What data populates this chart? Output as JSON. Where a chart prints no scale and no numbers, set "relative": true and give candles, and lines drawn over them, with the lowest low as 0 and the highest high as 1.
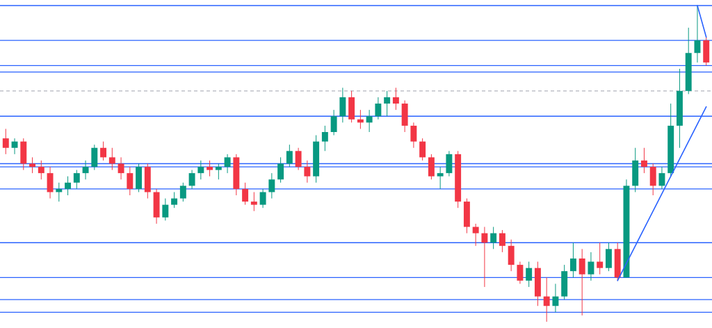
{
  "chart_data": {
    "type": "candlestick",
    "relative": true,
    "categories": [
      null,
      null,
      null,
      null,
      null,
      null,
      null,
      null,
      null,
      null,
      null,
      null,
      null,
      null,
      null,
      null,
      null,
      null,
      null,
      null,
      null,
      null,
      null,
      null,
      null,
      null,
      null,
      null,
      null,
      null,
      null,
      null,
      null,
      null,
      null,
      null,
      null,
      null,
      null,
      null,
      null,
      null,
      null,
      null,
      null,
      null,
      null,
      null,
      null,
      null,
      null,
      null,
      null,
      null,
      null,
      null,
      null,
      null,
      null,
      null,
      null,
      null,
      null,
      null,
      null,
      null,
      null,
      null,
      null,
      null,
      null,
      null,
      null,
      null,
      null,
      null,
      null,
      null,
      null,
      null
    ],
    "ohlc": [
      [
        0.58,
        0.61,
        0.53,
        0.55
      ],
      [
        0.55,
        0.58,
        0.53,
        0.57
      ],
      [
        0.57,
        0.58,
        0.48,
        0.5
      ],
      [
        0.5,
        0.52,
        0.47,
        0.49
      ],
      [
        0.49,
        0.51,
        0.45,
        0.47
      ],
      [
        0.47,
        0.49,
        0.39,
        0.41
      ],
      [
        0.41,
        0.44,
        0.38,
        0.42
      ],
      [
        0.42,
        0.46,
        0.4,
        0.44
      ],
      [
        0.44,
        0.48,
        0.42,
        0.47
      ],
      [
        0.47,
        0.51,
        0.45,
        0.49
      ],
      [
        0.49,
        0.56,
        0.48,
        0.55
      ],
      [
        0.55,
        0.57,
        0.51,
        0.52
      ],
      [
        0.52,
        0.55,
        0.48,
        0.5
      ],
      [
        0.5,
        0.52,
        0.45,
        0.47
      ],
      [
        0.47,
        0.49,
        0.4,
        0.42
      ],
      [
        0.42,
        0.5,
        0.41,
        0.49
      ],
      [
        0.49,
        0.5,
        0.39,
        0.41
      ],
      [
        0.41,
        0.42,
        0.31,
        0.33
      ],
      [
        0.33,
        0.39,
        0.32,
        0.37
      ],
      [
        0.37,
        0.41,
        0.36,
        0.39
      ],
      [
        0.39,
        0.44,
        0.38,
        0.43
      ],
      [
        0.43,
        0.48,
        0.42,
        0.47
      ],
      [
        0.47,
        0.51,
        0.45,
        0.49
      ],
      [
        0.49,
        0.51,
        0.46,
        0.48
      ],
      [
        0.48,
        0.5,
        0.45,
        0.49
      ],
      [
        0.49,
        0.53,
        0.47,
        0.52
      ],
      [
        0.52,
        0.53,
        0.4,
        0.42
      ],
      [
        0.42,
        0.44,
        0.37,
        0.38
      ],
      [
        0.38,
        0.41,
        0.35,
        0.37
      ],
      [
        0.37,
        0.42,
        0.36,
        0.41
      ],
      [
        0.41,
        0.47,
        0.39,
        0.45
      ],
      [
        0.45,
        0.52,
        0.44,
        0.5
      ],
      [
        0.5,
        0.56,
        0.49,
        0.54
      ],
      [
        0.54,
        0.55,
        0.48,
        0.49
      ],
      [
        0.49,
        0.51,
        0.44,
        0.46
      ],
      [
        0.46,
        0.59,
        0.44,
        0.57
      ],
      [
        0.57,
        0.62,
        0.54,
        0.6
      ],
      [
        0.6,
        0.67,
        0.59,
        0.65
      ],
      [
        0.65,
        0.74,
        0.63,
        0.71
      ],
      [
        0.71,
        0.73,
        0.63,
        0.64
      ],
      [
        0.64,
        0.67,
        0.61,
        0.63
      ],
      [
        0.63,
        0.67,
        0.6,
        0.65
      ],
      [
        0.65,
        0.71,
        0.64,
        0.69
      ],
      [
        0.69,
        0.73,
        0.65,
        0.71
      ],
      [
        0.71,
        0.74,
        0.67,
        0.69
      ],
      [
        0.69,
        0.7,
        0.6,
        0.62
      ],
      [
        0.62,
        0.63,
        0.55,
        0.57
      ],
      [
        0.57,
        0.58,
        0.51,
        0.52
      ],
      [
        0.52,
        0.53,
        0.45,
        0.46
      ],
      [
        0.46,
        0.49,
        0.42,
        0.47
      ],
      [
        0.47,
        0.54,
        0.46,
        0.53
      ],
      [
        0.53,
        0.54,
        0.36,
        0.38
      ],
      [
        0.38,
        0.39,
        0.28,
        0.3
      ],
      [
        0.3,
        0.31,
        0.24,
        0.28
      ],
      [
        0.28,
        0.3,
        0.11,
        0.25
      ],
      [
        0.25,
        0.3,
        0.23,
        0.28
      ],
      [
        0.28,
        0.29,
        0.22,
        0.24
      ],
      [
        0.24,
        0.26,
        0.16,
        0.18
      ],
      [
        0.18,
        0.19,
        0.12,
        0.13
      ],
      [
        0.13,
        0.19,
        0.11,
        0.17
      ],
      [
        0.17,
        0.19,
        0.05,
        0.08
      ],
      [
        0.08,
        0.14,
        0,
        0.05
      ],
      [
        0.05,
        0.12,
        0.03,
        0.08
      ],
      [
        0.08,
        0.18,
        0.07,
        0.16
      ],
      [
        0.16,
        0.25,
        0.14,
        0.2
      ],
      [
        0.2,
        0.23,
        0.02,
        0.15
      ],
      [
        0.15,
        0.22,
        0.13,
        0.19
      ],
      [
        0.19,
        0.25,
        0.15,
        0.17
      ],
      [
        0.17,
        0.25,
        0.16,
        0.23
      ],
      [
        0.23,
        0.25,
        0.13,
        0.14
      ],
      [
        0.14,
        0.45,
        0.14,
        0.43
      ],
      [
        0.43,
        0.55,
        0.41,
        0.51
      ],
      [
        0.51,
        0.55,
        0.47,
        0.49
      ],
      [
        0.49,
        0.5,
        0.4,
        0.43
      ],
      [
        0.43,
        0.49,
        0.42,
        0.47
      ],
      [
        0.47,
        0.69,
        0.46,
        0.62
      ],
      [
        0.62,
        0.8,
        0.55,
        0.73
      ],
      [
        0.73,
        0.93,
        0.72,
        0.85
      ],
      [
        0.85,
        1,
        0.82,
        0.89
      ],
      [
        0.89,
        0.9,
        0.81,
        0.82
      ]
    ],
    "series": [
      {
        "type": "line",
        "color": "#2962ff",
        "values": [
          null,
          null,
          null,
          null,
          null,
          null,
          null,
          null,
          null,
          null,
          null,
          null,
          null,
          null,
          null,
          null,
          null,
          null,
          null,
          null,
          null,
          null,
          null,
          null,
          null,
          null,
          null,
          null,
          null,
          null,
          null,
          null,
          null,
          null,
          null,
          null,
          null,
          null,
          null,
          null,
          null,
          null,
          null,
          null,
          null,
          null,
          null,
          null,
          null,
          null,
          null,
          null,
          null,
          null,
          null,
          null,
          null,
          null,
          null,
          null,
          null,
          null,
          null,
          null,
          null,
          null,
          null,
          null,
          null,
          0.13,
          null,
          null,
          null,
          null,
          null,
          null,
          null,
          null,
          null,
          0.68
        ]
      },
      {
        "type": "line",
        "color": "#2962ff",
        "values": [
          null,
          null,
          null,
          null,
          null,
          null,
          null,
          null,
          null,
          null,
          null,
          null,
          null,
          null,
          null,
          null,
          null,
          null,
          null,
          null,
          null,
          null,
          null,
          null,
          null,
          null,
          null,
          null,
          null,
          null,
          null,
          null,
          null,
          null,
          null,
          null,
          null,
          null,
          null,
          null,
          null,
          null,
          null,
          null,
          null,
          null,
          null,
          null,
          null,
          null,
          null,
          null,
          null,
          null,
          null,
          null,
          null,
          null,
          null,
          null,
          null,
          null,
          null,
          null,
          null,
          null,
          null,
          null,
          null,
          null,
          null,
          null,
          null,
          null,
          null,
          null,
          null,
          null,
          1,
          0.9
        ]
      }
    ],
    "ref_lines": [
      {
        "axis": "y",
        "value": 1,
        "color": "#2962ff"
      },
      {
        "axis": "y",
        "value": 0.89,
        "color": "#2962ff"
      },
      {
        "axis": "y",
        "value": 0.81,
        "color": "#2962ff"
      },
      {
        "axis": "y",
        "value": 0.79,
        "color": "#2962ff"
      },
      {
        "axis": "y",
        "value": 0.73,
        "color": "#b2b5be",
        "line_style": "dashed"
      },
      {
        "axis": "y",
        "value": 0.65,
        "color": "#2962ff"
      },
      {
        "axis": "y",
        "value": 0.5,
        "color": "#2962ff"
      },
      {
        "axis": "y",
        "value": 0.49,
        "color": "#2962ff"
      },
      {
        "axis": "y",
        "value": 0.42,
        "color": "#2962ff"
      },
      {
        "axis": "y",
        "value": 0.25,
        "color": "#2962ff"
      },
      {
        "axis": "y",
        "value": 0.14,
        "color": "#2962ff"
      },
      {
        "axis": "y",
        "value": 0.07,
        "color": "#2962ff"
      },
      {
        "axis": "y",
        "value": 0.03,
        "color": "#2962ff"
      }
    ]
  }
}
